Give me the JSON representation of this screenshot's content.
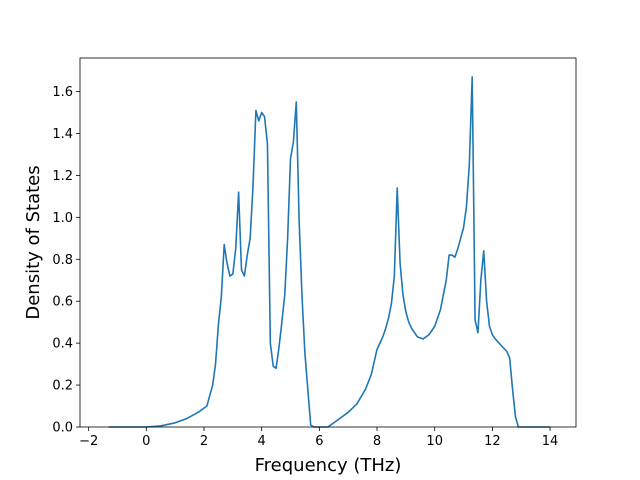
{
  "chart_data": {
    "type": "line",
    "title": "",
    "xlabel": "Frequency (THz)",
    "ylabel": "Density of States",
    "xlim": [
      -2.3,
      14.9
    ],
    "ylim": [
      0.0,
      1.76
    ],
    "xticks": [
      -2,
      0,
      2,
      4,
      6,
      8,
      10,
      12,
      14
    ],
    "xtick_labels": [
      "−2",
      "0",
      "2",
      "4",
      "6",
      "8",
      "10",
      "12",
      "14"
    ],
    "yticks": [
      0.0,
      0.2,
      0.4,
      0.6,
      0.8,
      1.0,
      1.2,
      1.4,
      1.6
    ],
    "ytick_labels": [
      "0.0",
      "0.2",
      "0.4",
      "0.6",
      "0.8",
      "1.0",
      "1.2",
      "1.4",
      "1.6"
    ],
    "grid": false,
    "colors": {
      "line": "#1f77b4"
    },
    "series": [
      {
        "x": [
          -1.3,
          -0.5,
          0.0,
          0.5,
          1.0,
          1.4,
          1.8,
          2.1,
          2.3,
          2.4,
          2.5,
          2.6,
          2.7,
          2.8,
          2.9,
          3.0,
          3.1,
          3.2,
          3.3,
          3.4,
          3.5,
          3.6,
          3.7,
          3.8,
          3.9,
          4.0,
          4.1,
          4.2,
          4.3,
          4.4,
          4.5,
          4.6,
          4.7,
          4.8,
          4.9,
          5.0,
          5.1,
          5.2,
          5.3,
          5.4,
          5.5,
          5.6,
          5.7,
          5.8,
          5.9,
          6.0,
          6.3,
          6.7,
          7.0,
          7.3,
          7.6,
          7.8,
          8.0,
          8.1,
          8.2,
          8.3,
          8.4,
          8.5,
          8.6,
          8.7,
          8.8,
          8.9,
          9.0,
          9.1,
          9.2,
          9.4,
          9.6,
          9.8,
          10.0,
          10.2,
          10.4,
          10.5,
          10.6,
          10.7,
          10.8,
          10.9,
          11.0,
          11.1,
          11.2,
          11.3,
          11.35,
          11.4,
          11.5,
          11.6,
          11.7,
          11.8,
          11.9,
          12.0,
          12.1,
          12.3,
          12.5,
          12.6,
          12.7,
          12.8,
          12.9,
          13.0,
          13.5,
          14.0
        ],
        "y": [
          0.0,
          0.0,
          0.0,
          0.005,
          0.02,
          0.04,
          0.07,
          0.1,
          0.2,
          0.3,
          0.49,
          0.62,
          0.87,
          0.78,
          0.72,
          0.73,
          0.85,
          1.12,
          0.75,
          0.72,
          0.82,
          0.9,
          1.15,
          1.51,
          1.46,
          1.5,
          1.48,
          1.35,
          0.4,
          0.29,
          0.28,
          0.38,
          0.5,
          0.63,
          0.9,
          1.28,
          1.36,
          1.55,
          0.98,
          0.62,
          0.35,
          0.18,
          0.01,
          0.0,
          0.0,
          0.0,
          0.0,
          0.04,
          0.07,
          0.11,
          0.18,
          0.25,
          0.37,
          0.4,
          0.43,
          0.47,
          0.52,
          0.59,
          0.72,
          1.14,
          0.78,
          0.63,
          0.55,
          0.5,
          0.47,
          0.43,
          0.42,
          0.44,
          0.48,
          0.56,
          0.7,
          0.82,
          0.82,
          0.81,
          0.85,
          0.9,
          0.95,
          1.05,
          1.25,
          1.67,
          1.1,
          0.51,
          0.45,
          0.7,
          0.84,
          0.6,
          0.48,
          0.44,
          0.42,
          0.39,
          0.36,
          0.33,
          0.18,
          0.05,
          0.0,
          0.0,
          0.0,
          0.0
        ]
      }
    ]
  }
}
